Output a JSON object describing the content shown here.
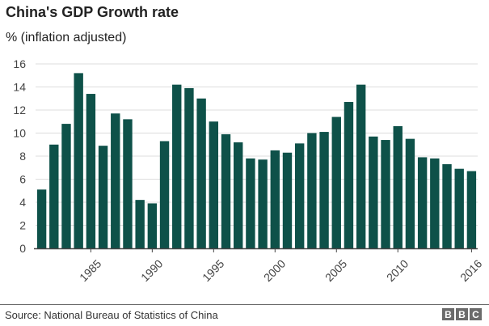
{
  "chart_data": {
    "type": "bar",
    "title": "China's GDP Growth rate",
    "subtitle": "% (inflation adjusted)",
    "xlabel": "",
    "ylabel": "",
    "x": [
      1981,
      1982,
      1983,
      1984,
      1985,
      1986,
      1987,
      1988,
      1989,
      1990,
      1991,
      1992,
      1993,
      1994,
      1995,
      1996,
      1997,
      1998,
      1999,
      2000,
      2001,
      2002,
      2003,
      2004,
      2005,
      2006,
      2007,
      2008,
      2009,
      2010,
      2011,
      2012,
      2013,
      2014,
      2015,
      2016
    ],
    "values": [
      5.1,
      9.0,
      10.8,
      15.2,
      13.4,
      8.9,
      11.7,
      11.2,
      4.2,
      3.9,
      9.3,
      14.2,
      13.9,
      13.0,
      11.0,
      9.9,
      9.2,
      7.8,
      7.7,
      8.5,
      8.3,
      9.1,
      10.0,
      10.1,
      11.4,
      12.7,
      14.2,
      9.7,
      9.4,
      10.6,
      9.5,
      7.9,
      7.8,
      7.3,
      6.9,
      6.7
    ],
    "x_tick_labels": [
      "1985",
      "1990",
      "1995",
      "2000",
      "2005",
      "2010",
      "2016"
    ],
    "y_tick_labels": [
      "0",
      "2",
      "4",
      "6",
      "8",
      "10",
      "12",
      "14",
      "16"
    ],
    "ylim": [
      0,
      16
    ],
    "grid": "horizontal",
    "legend": "none",
    "bar_color": "#0e5149",
    "grid_color": "#dddddd",
    "axis_color": "#444444"
  },
  "footer": {
    "source": "Source: National Bureau of Statistics of China",
    "logo_letters": [
      "B",
      "B",
      "C"
    ]
  }
}
